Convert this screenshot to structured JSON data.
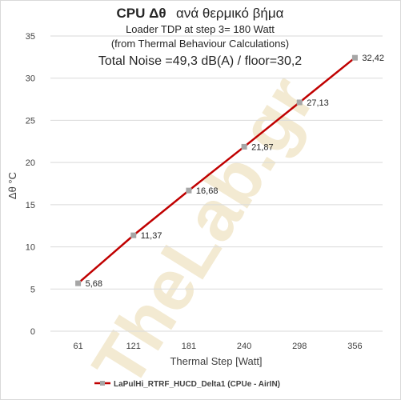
{
  "chart_data": {
    "type": "line",
    "title_bold": "CPU  Δθ",
    "title_rest": "ανά θερμικό βήμα",
    "subtitle1": "Loader TDP at step 3= 180 Watt",
    "subtitle2": "(from Thermal Behaviour Calculations)",
    "subtitle3": "Total Noise =49,3 dB(A) / floor=30,2",
    "xlabel": "Thermal Step [Watt]",
    "ylabel": "Δθ °C",
    "categories": [
      "61",
      "121",
      "181",
      "240",
      "298",
      "356"
    ],
    "ylim": [
      0,
      35
    ],
    "yticks": [
      "0",
      "5",
      "10",
      "15",
      "20",
      "25",
      "30",
      "35"
    ],
    "grid": true,
    "legend_position": "bottom",
    "series": [
      {
        "name": "LaPulHi_RTRF_HUCD_Delta1 (CPUe - AirIN)",
        "values": [
          5.68,
          11.37,
          16.68,
          21.87,
          27.13,
          32.42
        ],
        "labels": [
          "5,68",
          "11,37",
          "16,68",
          "21,87",
          "27,13",
          "32,42"
        ],
        "line_color": "#c00000",
        "marker_color": "#a6a6a6"
      }
    ],
    "watermark": "TheLab.gr"
  }
}
